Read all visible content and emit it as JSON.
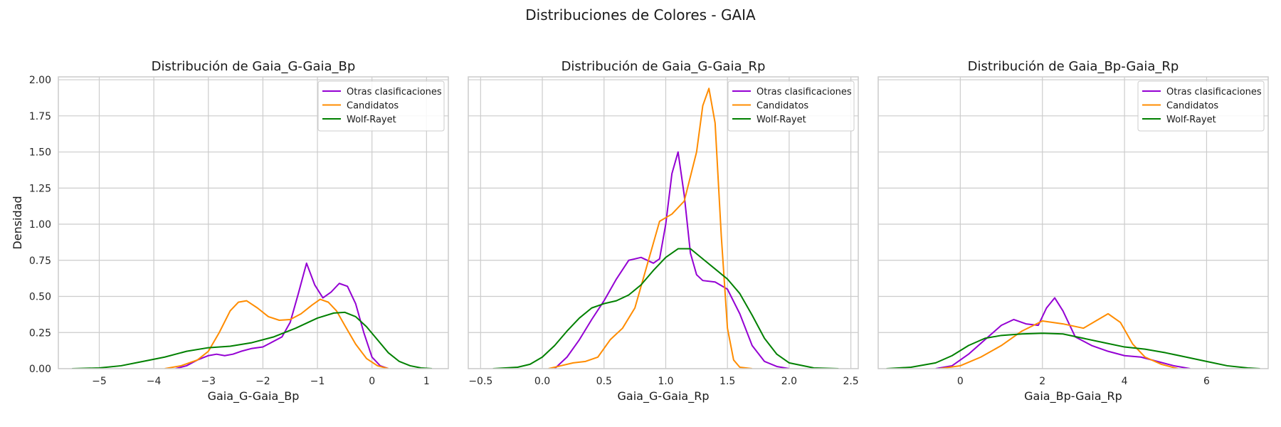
{
  "figure": {
    "title": "Distribuciones de Colores - GAIA"
  },
  "colors": {
    "Otras clasificaciones": "#9400d3",
    "Candidatos": "#ff8c00",
    "Wolf-Rayet": "#008000"
  },
  "chart_data": [
    {
      "type": "line",
      "title": "Distribución de Gaia_G-Gaia_Bp",
      "xlabel": "Gaia_G-Gaia_Bp",
      "ylabel": "Densidad",
      "xlim": [
        -5.75,
        1.4
      ],
      "ylim": [
        0,
        2.02
      ],
      "xticks": [
        -5,
        -4,
        -3,
        -2,
        -1,
        0,
        1
      ],
      "xtick_labels": [
        "−5",
        "−4",
        "−3",
        "−2",
        "−1",
        "0",
        "1"
      ],
      "yticks": [
        0,
        0.25,
        0.5,
        0.75,
        1.0,
        1.25,
        1.5,
        1.75,
        2.0
      ],
      "ytick_labels": [
        "0.00",
        "0.25",
        "0.50",
        "0.75",
        "1.00",
        "1.25",
        "1.50",
        "1.75",
        "2.00"
      ],
      "grid": true,
      "legend": "top-right",
      "series": [
        {
          "name": "Otras clasificaciones",
          "color": "#9400d3",
          "points": [
            [
              -3.6,
              0
            ],
            [
              -3.4,
              0.02
            ],
            [
              -3.2,
              0.06
            ],
            [
              -3.0,
              0.09
            ],
            [
              -2.85,
              0.1
            ],
            [
              -2.7,
              0.09
            ],
            [
              -2.55,
              0.1
            ],
            [
              -2.4,
              0.12
            ],
            [
              -2.2,
              0.14
            ],
            [
              -2.0,
              0.15
            ],
            [
              -1.85,
              0.18
            ],
            [
              -1.65,
              0.22
            ],
            [
              -1.5,
              0.32
            ],
            [
              -1.35,
              0.52
            ],
            [
              -1.2,
              0.73
            ],
            [
              -1.05,
              0.58
            ],
            [
              -0.9,
              0.49
            ],
            [
              -0.75,
              0.53
            ],
            [
              -0.6,
              0.59
            ],
            [
              -0.45,
              0.57
            ],
            [
              -0.3,
              0.45
            ],
            [
              -0.15,
              0.25
            ],
            [
              0.0,
              0.08
            ],
            [
              0.15,
              0.02
            ],
            [
              0.3,
              0
            ]
          ]
        },
        {
          "name": "Candidatos",
          "color": "#ff8c00",
          "points": [
            [
              -3.8,
              0
            ],
            [
              -3.5,
              0.02
            ],
            [
              -3.2,
              0.06
            ],
            [
              -3.0,
              0.12
            ],
            [
              -2.8,
              0.25
            ],
            [
              -2.6,
              0.4
            ],
            [
              -2.45,
              0.46
            ],
            [
              -2.3,
              0.47
            ],
            [
              -2.1,
              0.42
            ],
            [
              -1.9,
              0.36
            ],
            [
              -1.7,
              0.335
            ],
            [
              -1.5,
              0.34
            ],
            [
              -1.3,
              0.38
            ],
            [
              -1.1,
              0.44
            ],
            [
              -0.95,
              0.48
            ],
            [
              -0.8,
              0.46
            ],
            [
              -0.65,
              0.4
            ],
            [
              -0.5,
              0.3
            ],
            [
              -0.3,
              0.17
            ],
            [
              -0.1,
              0.07
            ],
            [
              0.1,
              0.02
            ],
            [
              0.3,
              0
            ]
          ]
        },
        {
          "name": "Wolf-Rayet",
          "color": "#008000",
          "points": [
            [
              -5.5,
              0
            ],
            [
              -5.0,
              0.005
            ],
            [
              -4.6,
              0.02
            ],
            [
              -4.2,
              0.05
            ],
            [
              -3.8,
              0.08
            ],
            [
              -3.4,
              0.12
            ],
            [
              -3.0,
              0.145
            ],
            [
              -2.6,
              0.155
            ],
            [
              -2.2,
              0.18
            ],
            [
              -1.8,
              0.22
            ],
            [
              -1.4,
              0.28
            ],
            [
              -1.0,
              0.35
            ],
            [
              -0.7,
              0.385
            ],
            [
              -0.5,
              0.39
            ],
            [
              -0.3,
              0.36
            ],
            [
              -0.1,
              0.29
            ],
            [
              0.1,
              0.2
            ],
            [
              0.3,
              0.11
            ],
            [
              0.5,
              0.05
            ],
            [
              0.7,
              0.02
            ],
            [
              0.9,
              0.005
            ],
            [
              1.1,
              0
            ]
          ]
        }
      ]
    },
    {
      "type": "line",
      "title": "Distribución de Gaia_G-Gaia_Rp",
      "xlabel": "Gaia_G-Gaia_Rp",
      "ylabel": "",
      "xlim": [
        -0.6,
        2.56
      ],
      "ylim": [
        0,
        2.02
      ],
      "xticks": [
        -0.5,
        0.0,
        0.5,
        1.0,
        1.5,
        2.0,
        2.5
      ],
      "xtick_labels": [
        "−0.5",
        "0.0",
        "0.5",
        "1.0",
        "1.5",
        "2.0",
        "2.5"
      ],
      "yticks": [
        0,
        0.25,
        0.5,
        0.75,
        1.0,
        1.25,
        1.5,
        1.75,
        2.0
      ],
      "ytick_labels": [],
      "grid": true,
      "legend": "top-right",
      "series": [
        {
          "name": "Otras clasificaciones",
          "color": "#9400d3",
          "points": [
            [
              0.1,
              0
            ],
            [
              0.2,
              0.08
            ],
            [
              0.3,
              0.2
            ],
            [
              0.4,
              0.34
            ],
            [
              0.5,
              0.47
            ],
            [
              0.6,
              0.62
            ],
            [
              0.7,
              0.75
            ],
            [
              0.8,
              0.77
            ],
            [
              0.9,
              0.73
            ],
            [
              0.95,
              0.76
            ],
            [
              1.0,
              1.0
            ],
            [
              1.05,
              1.35
            ],
            [
              1.1,
              1.5
            ],
            [
              1.15,
              1.2
            ],
            [
              1.2,
              0.8
            ],
            [
              1.25,
              0.65
            ],
            [
              1.3,
              0.61
            ],
            [
              1.4,
              0.6
            ],
            [
              1.5,
              0.55
            ],
            [
              1.6,
              0.38
            ],
            [
              1.7,
              0.16
            ],
            [
              1.8,
              0.05
            ],
            [
              1.9,
              0.015
            ],
            [
              2.0,
              0
            ]
          ]
        },
        {
          "name": "Candidatos",
          "color": "#ff8c00",
          "points": [
            [
              0.05,
              0
            ],
            [
              0.15,
              0.02
            ],
            [
              0.25,
              0.04
            ],
            [
              0.35,
              0.05
            ],
            [
              0.45,
              0.08
            ],
            [
              0.55,
              0.2
            ],
            [
              0.65,
              0.28
            ],
            [
              0.75,
              0.42
            ],
            [
              0.85,
              0.72
            ],
            [
              0.95,
              1.02
            ],
            [
              1.05,
              1.07
            ],
            [
              1.15,
              1.16
            ],
            [
              1.25,
              1.5
            ],
            [
              1.3,
              1.82
            ],
            [
              1.35,
              1.94
            ],
            [
              1.4,
              1.7
            ],
            [
              1.45,
              0.92
            ],
            [
              1.5,
              0.28
            ],
            [
              1.55,
              0.06
            ],
            [
              1.6,
              0.01
            ],
            [
              1.7,
              0
            ]
          ]
        },
        {
          "name": "Wolf-Rayet",
          "color": "#008000",
          "points": [
            [
              -0.4,
              0
            ],
            [
              -0.2,
              0.01
            ],
            [
              -0.1,
              0.03
            ],
            [
              0.0,
              0.08
            ],
            [
              0.1,
              0.16
            ],
            [
              0.2,
              0.26
            ],
            [
              0.3,
              0.35
            ],
            [
              0.4,
              0.42
            ],
            [
              0.5,
              0.45
            ],
            [
              0.6,
              0.47
            ],
            [
              0.7,
              0.51
            ],
            [
              0.8,
              0.58
            ],
            [
              0.9,
              0.68
            ],
            [
              1.0,
              0.77
            ],
            [
              1.1,
              0.83
            ],
            [
              1.2,
              0.83
            ],
            [
              1.3,
              0.76
            ],
            [
              1.4,
              0.69
            ],
            [
              1.5,
              0.62
            ],
            [
              1.6,
              0.52
            ],
            [
              1.7,
              0.37
            ],
            [
              1.8,
              0.21
            ],
            [
              1.9,
              0.1
            ],
            [
              2.0,
              0.04
            ],
            [
              2.2,
              0.005
            ],
            [
              2.4,
              0
            ]
          ]
        }
      ]
    },
    {
      "type": "line",
      "title": "Distribución de Gaia_Bp-Gaia_Rp",
      "xlabel": "Gaia_Bp-Gaia_Rp",
      "ylabel": "",
      "xlim": [
        -2.0,
        7.5
      ],
      "ylim": [
        0,
        2.02
      ],
      "xticks": [
        0,
        2,
        4,
        6
      ],
      "xtick_labels": [
        "0",
        "2",
        "4",
        "6"
      ],
      "yticks": [
        0,
        0.25,
        0.5,
        0.75,
        1.0,
        1.25,
        1.5,
        1.75,
        2.0
      ],
      "ytick_labels": [],
      "grid": true,
      "legend": "top-right",
      "series": [
        {
          "name": "Otras clasificaciones",
          "color": "#9400d3",
          "points": [
            [
              -0.6,
              0
            ],
            [
              -0.2,
              0.02
            ],
            [
              0.2,
              0.1
            ],
            [
              0.6,
              0.2
            ],
            [
              1.0,
              0.3
            ],
            [
              1.3,
              0.34
            ],
            [
              1.6,
              0.31
            ],
            [
              1.9,
              0.3
            ],
            [
              2.1,
              0.42
            ],
            [
              2.3,
              0.49
            ],
            [
              2.5,
              0.4
            ],
            [
              2.8,
              0.22
            ],
            [
              3.2,
              0.16
            ],
            [
              3.6,
              0.12
            ],
            [
              4.0,
              0.09
            ],
            [
              4.4,
              0.08
            ],
            [
              4.8,
              0.05
            ],
            [
              5.2,
              0.02
            ],
            [
              5.6,
              0
            ]
          ]
        },
        {
          "name": "Candidatos",
          "color": "#ff8c00",
          "points": [
            [
              -0.5,
              0
            ],
            [
              0,
              0.02
            ],
            [
              0.5,
              0.08
            ],
            [
              1.0,
              0.16
            ],
            [
              1.5,
              0.26
            ],
            [
              2.0,
              0.33
            ],
            [
              2.5,
              0.31
            ],
            [
              3.0,
              0.28
            ],
            [
              3.3,
              0.33
            ],
            [
              3.6,
              0.38
            ],
            [
              3.9,
              0.32
            ],
            [
              4.2,
              0.17
            ],
            [
              4.5,
              0.08
            ],
            [
              4.9,
              0.03
            ],
            [
              5.3,
              0
            ]
          ]
        },
        {
          "name": "Wolf-Rayet",
          "color": "#008000",
          "points": [
            [
              -1.8,
              0
            ],
            [
              -1.2,
              0.01
            ],
            [
              -0.6,
              0.04
            ],
            [
              -0.2,
              0.09
            ],
            [
              0.2,
              0.16
            ],
            [
              0.6,
              0.21
            ],
            [
              1.0,
              0.23
            ],
            [
              1.5,
              0.24
            ],
            [
              2.0,
              0.245
            ],
            [
              2.5,
              0.24
            ],
            [
              3.0,
              0.21
            ],
            [
              3.5,
              0.18
            ],
            [
              4.0,
              0.15
            ],
            [
              4.5,
              0.135
            ],
            [
              5.0,
              0.11
            ],
            [
              5.5,
              0.08
            ],
            [
              6.0,
              0.05
            ],
            [
              6.5,
              0.02
            ],
            [
              7.0,
              0.005
            ],
            [
              7.3,
              0
            ]
          ]
        }
      ]
    }
  ]
}
